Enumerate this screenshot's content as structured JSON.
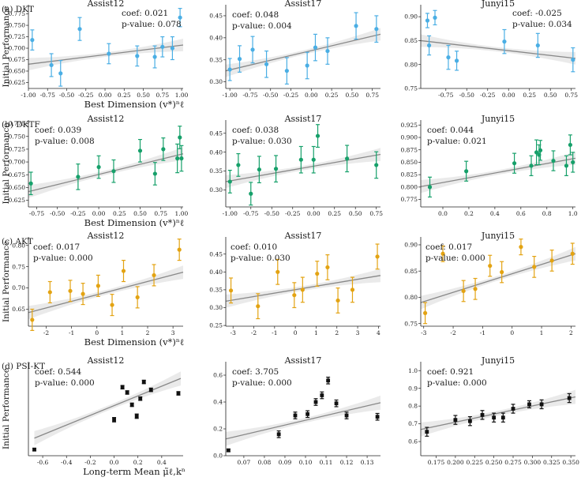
{
  "figure": {
    "ylabel": "Initial Performance",
    "rows": [
      {
        "label": "(a) DKT",
        "xlabel": "Best Dimension (v*)ⁿℓ"
      },
      {
        "label": "(b) DKTF",
        "xlabel": "Best Dimension (v*)ⁿℓ"
      },
      {
        "label": "(c) AKT",
        "xlabel": "Best Dimension (v*)ⁿℓ"
      },
      {
        "label": "(d) PSI-KT",
        "xlabel": "Long-term Mean μ̃ℓ,kⁿ"
      }
    ],
    "colors": {
      "DKT": "#4aaee4",
      "DKTF": "#16a06a",
      "AKT": "#e3a312",
      "PSI-KT": "#111111",
      "fit": "#888888",
      "band": "#e6e6e6"
    }
  },
  "chart_data": [
    {
      "type": "scatter",
      "row": 0,
      "col": 0,
      "model": "DKT",
      "title": "Assist12",
      "coef": "coef: 0.021",
      "pvalue": "p-value: 0.078",
      "xlim": [
        -1.0,
        1.02
      ],
      "ylim": [
        0.612,
        0.795
      ],
      "xticks": [
        "-1.00",
        "-0.75",
        "-0.50",
        "-0.25",
        "0.00",
        "0.25",
        "0.50",
        "0.75",
        "1.00"
      ],
      "yticks": [
        "0.625",
        "0.650",
        "0.675",
        "0.700",
        "0.725",
        "0.750",
        "0.775"
      ],
      "x": [
        -0.95,
        -0.7,
        -0.58,
        -0.33,
        0.05,
        0.42,
        0.65,
        0.75,
        0.88,
        0.98
      ],
      "y": [
        0.718,
        0.663,
        0.645,
        0.742,
        0.688,
        0.683,
        0.681,
        0.703,
        0.7,
        0.767
      ],
      "err": [
        0.022,
        0.025,
        0.028,
        0.025,
        0.022,
        0.022,
        0.024,
        0.022,
        0.025,
        0.02
      ],
      "fit": [
        [
          -1.0,
          0.665
        ],
        [
          1.02,
          0.707
        ]
      ]
    },
    {
      "type": "scatter",
      "row": 0,
      "col": 1,
      "model": "DKT",
      "title": "Assist17",
      "coef": "coef: 0.048",
      "pvalue": "p-value: 0.004",
      "xlim": [
        -1.05,
        0.85
      ],
      "ylim": [
        0.285,
        0.475
      ],
      "xticks": [
        "-1.00",
        "-0.75",
        "-0.50",
        "-0.25",
        "0.00",
        "0.25",
        "0.50",
        "0.75"
      ],
      "yticks": [
        "0.30",
        "0.35",
        "0.40",
        "0.45"
      ],
      "x": [
        -1.0,
        -0.88,
        -0.72,
        -0.55,
        -0.3,
        -0.05,
        0.05,
        0.2,
        0.55,
        0.8
      ],
      "y": [
        0.328,
        0.352,
        0.373,
        0.34,
        0.325,
        0.337,
        0.378,
        0.37,
        0.427,
        0.42
      ],
      "err": [
        0.025,
        0.03,
        0.03,
        0.03,
        0.03,
        0.03,
        0.03,
        0.03,
        0.03,
        0.03
      ],
      "fit": [
        [
          -1.05,
          0.325
        ],
        [
          0.85,
          0.408
        ]
      ]
    },
    {
      "type": "scatter",
      "row": 0,
      "col": 2,
      "model": "DKT",
      "title": "Junyi15",
      "coef": "coef: -0.025",
      "pvalue": "p-value: 0.034",
      "xlim": [
        -1.05,
        0.8
      ],
      "ylim": [
        0.75,
        0.925
      ],
      "xticks": [
        "-0.75",
        "-0.50",
        "-0.25",
        "0.00",
        "0.25",
        "0.50",
        "0.75"
      ],
      "yticks": [
        "0.75",
        "0.80",
        "0.85",
        "0.90"
      ],
      "x": [
        -0.97,
        -0.95,
        -0.88,
        -0.72,
        -0.62,
        -0.05,
        0.35,
        0.77
      ],
      "y": [
        0.892,
        0.84,
        0.898,
        0.815,
        0.808,
        0.848,
        0.84,
        0.81
      ],
      "err": [
        0.015,
        0.02,
        0.015,
        0.025,
        0.02,
        0.025,
        0.025,
        0.025
      ],
      "fit": [
        [
          -1.05,
          0.85
        ],
        [
          0.8,
          0.813
        ]
      ]
    },
    {
      "type": "scatter",
      "row": 1,
      "col": 0,
      "model": "DKTF",
      "title": "Assist12",
      "coef": "coef: 0.039",
      "pvalue": "p-value: 0.008",
      "xlim": [
        -0.85,
        1.02
      ],
      "ylim": [
        0.612,
        0.782
      ],
      "xticks": [
        "-0.75",
        "-0.50",
        "-0.25",
        "0.00",
        "0.25",
        "0.50",
        "0.75",
        "1.00"
      ],
      "yticks": [
        "0.625",
        "0.650",
        "0.675",
        "0.700",
        "0.725",
        "0.750",
        "0.775"
      ],
      "x": [
        -0.82,
        -0.25,
        0.0,
        0.18,
        0.5,
        0.68,
        0.78,
        0.95,
        0.98,
        1.0
      ],
      "y": [
        0.658,
        0.671,
        0.69,
        0.682,
        0.722,
        0.677,
        0.725,
        0.707,
        0.748,
        0.707
      ],
      "err": [
        0.022,
        0.025,
        0.022,
        0.022,
        0.022,
        0.022,
        0.022,
        0.028,
        0.022,
        0.025
      ],
      "fit": [
        [
          -0.85,
          0.642
        ],
        [
          1.02,
          0.716
        ]
      ]
    },
    {
      "type": "scatter",
      "row": 1,
      "col": 1,
      "model": "DKTF",
      "title": "Assist17",
      "coef": "coef: 0.038",
      "pvalue": "p-value: 0.030",
      "xlim": [
        -1.05,
        0.8
      ],
      "ylim": [
        0.255,
        0.485
      ],
      "xticks": [
        "-1.00",
        "-0.75",
        "-0.50",
        "-0.25",
        "0.00",
        "0.25",
        "0.50",
        "0.75"
      ],
      "yticks": [
        "0.30",
        "0.35",
        "0.40",
        "0.45"
      ],
      "x": [
        -1.0,
        -0.9,
        -0.75,
        -0.65,
        -0.45,
        -0.15,
        0.0,
        0.05,
        0.4,
        0.75
      ],
      "y": [
        0.322,
        0.366,
        0.29,
        0.354,
        0.356,
        0.38,
        0.38,
        0.443,
        0.383,
        0.366
      ],
      "err": [
        0.03,
        0.03,
        0.03,
        0.035,
        0.035,
        0.035,
        0.035,
        0.03,
        0.035,
        0.035
      ],
      "fit": [
        [
          -1.05,
          0.322
        ],
        [
          0.8,
          0.394
        ]
      ]
    },
    {
      "type": "scatter",
      "row": 1,
      "col": 2,
      "model": "DKTF",
      "title": "Junyi15",
      "coef": "coef: 0.044",
      "pvalue": "p-value: 0.021",
      "xlim": [
        -0.17,
        1.02
      ],
      "ylim": [
        0.76,
        0.935
      ],
      "xticks": [
        "0.0",
        "0.2",
        "0.4",
        "0.6",
        "0.8",
        "1.0"
      ],
      "yticks": [
        "0.775",
        "0.800",
        "0.825",
        "0.850",
        "0.875",
        "0.900",
        "0.925"
      ],
      "x": [
        -0.1,
        0.18,
        0.55,
        0.68,
        0.72,
        0.74,
        0.75,
        0.85,
        0.95,
        0.98,
        1.0
      ],
      "y": [
        0.8,
        0.832,
        0.848,
        0.843,
        0.87,
        0.865,
        0.874,
        0.853,
        0.843,
        0.885,
        0.85
      ],
      "err": [
        0.02,
        0.02,
        0.02,
        0.02,
        0.025,
        0.02,
        0.02,
        0.02,
        0.02,
        0.02,
        0.02
      ],
      "fit": [
        [
          -0.17,
          0.801
        ],
        [
          1.02,
          0.858
        ]
      ]
    },
    {
      "type": "scatter",
      "row": 2,
      "col": 0,
      "model": "AKT",
      "title": "Assist12",
      "coef": "coef: 0.017",
      "pvalue": "p-value: 0.000",
      "xlim": [
        -2.7,
        3.4
      ],
      "ylim": [
        0.61,
        0.82
      ],
      "xticks": [
        "-2",
        "-1",
        "0",
        "1",
        "2",
        "3"
      ],
      "yticks": [
        "0.60",
        "0.65",
        "0.70",
        "0.75",
        "0.80"
      ],
      "x": [
        -2.55,
        -1.85,
        -1.05,
        -0.55,
        0.05,
        0.6,
        1.05,
        1.6,
        2.25,
        3.25
      ],
      "y": [
        0.625,
        0.69,
        0.693,
        0.686,
        0.705,
        0.66,
        0.74,
        0.678,
        0.73,
        0.79
      ],
      "err": [
        0.025,
        0.025,
        0.025,
        0.025,
        0.025,
        0.025,
        0.025,
        0.025,
        0.025,
        0.025
      ],
      "fit": [
        [
          -2.7,
          0.642
        ],
        [
          3.4,
          0.737
        ]
      ]
    },
    {
      "type": "scatter",
      "row": 2,
      "col": 1,
      "model": "AKT",
      "title": "Assist17",
      "coef": "coef: 0.010",
      "pvalue": "p-value: 0.030",
      "xlim": [
        -3.35,
        4.1
      ],
      "ylim": [
        0.248,
        0.498
      ],
      "xticks": [
        "-3",
        "-2",
        "-1",
        "0",
        "1",
        "2",
        "3",
        "4"
      ],
      "yticks": [
        "0.25",
        "0.30",
        "0.35",
        "0.40",
        "0.45"
      ],
      "x": [
        -3.1,
        -1.8,
        -0.85,
        -0.05,
        0.35,
        1.05,
        1.55,
        2.05,
        2.75,
        3.95
      ],
      "y": [
        0.348,
        0.304,
        0.4,
        0.335,
        0.35,
        0.395,
        0.413,
        0.32,
        0.35,
        0.443
      ],
      "err": [
        0.035,
        0.035,
        0.035,
        0.035,
        0.035,
        0.035,
        0.035,
        0.035,
        0.035,
        0.035
      ],
      "fit": [
        [
          -3.35,
          0.318
        ],
        [
          4.1,
          0.39
        ]
      ]
    },
    {
      "type": "scatter",
      "row": 2,
      "col": 2,
      "model": "AKT",
      "title": "Junyi15",
      "coef": "coef: 0.017",
      "pvalue": "p-value: 0.000",
      "xlim": [
        -3.1,
        2.15
      ],
      "ylim": [
        0.745,
        0.915
      ],
      "xticks": [
        "-3",
        "-2",
        "-1",
        "0",
        "1",
        "2"
      ],
      "yticks": [
        "0.75",
        "0.80",
        "0.85",
        "0.90"
      ],
      "x": [
        -2.95,
        -2.35,
        -1.65,
        -1.25,
        -0.75,
        -0.35,
        0.3,
        0.75,
        1.35,
        2.05
      ],
      "y": [
        0.77,
        0.883,
        0.812,
        0.816,
        0.86,
        0.848,
        0.896,
        0.858,
        0.87,
        0.883
      ],
      "err": [
        0.02,
        0.015,
        0.02,
        0.02,
        0.02,
        0.02,
        0.015,
        0.02,
        0.02,
        0.02
      ],
      "fit": [
        [
          -3.1,
          0.79
        ],
        [
          2.15,
          0.883
        ]
      ]
    },
    {
      "type": "scatter",
      "row": 3,
      "col": 0,
      "model": "PSI-KT",
      "title": "Assist12",
      "coef": "coef: 0.544",
      "pvalue": "p-value: 0.000",
      "xlim": [
        -0.72,
        0.58
      ],
      "ylim": [
        0.05,
        1.12
      ],
      "xticks": [
        "-0.6",
        "-0.4",
        "-0.2",
        "0.0",
        "0.2",
        "0.4"
      ],
      "yticks": [],
      "x": [
        -0.67,
        0.0,
        0.07,
        0.11,
        0.15,
        0.19,
        0.22,
        0.25,
        0.31,
        0.54
      ],
      "y": [
        0.12,
        0.46,
        0.83,
        0.77,
        0.63,
        0.5,
        0.7,
        0.89,
        0.8,
        0.76
      ],
      "err": [
        0.015,
        0.025,
        0.02,
        0.02,
        0.02,
        0.025,
        0.02,
        0.02,
        0.02,
        0.02
      ],
      "fit": [
        [
          -0.67,
          0.25
        ],
        [
          0.56,
          0.93
        ]
      ]
    },
    {
      "type": "scatter",
      "row": 3,
      "col": 1,
      "model": "PSI-KT",
      "title": "Assist17",
      "coef": "coef: 3.705",
      "pvalue": "p-value: 0.000",
      "xlim": [
        0.0612,
        0.1365
      ],
      "ylim": [
        0.0,
        0.7
      ],
      "xticks": [
        "0.07",
        "0.08",
        "0.09",
        "0.10",
        "0.11",
        "0.12",
        "0.13"
      ],
      "yticks": [
        "0.0",
        "0.2",
        "0.4",
        "0.6"
      ],
      "x": [
        0.0625,
        0.087,
        0.095,
        0.101,
        0.105,
        0.108,
        0.111,
        0.115,
        0.12,
        0.135
      ],
      "y": [
        0.04,
        0.16,
        0.3,
        0.31,
        0.4,
        0.45,
        0.56,
        0.39,
        0.3,
        0.29
      ],
      "err": [
        0.01,
        0.025,
        0.025,
        0.025,
        0.025,
        0.025,
        0.025,
        0.025,
        0.025,
        0.025
      ],
      "fit": [
        [
          0.0612,
          0.125
        ],
        [
          0.1365,
          0.395
        ]
      ]
    },
    {
      "type": "scatter",
      "row": 3,
      "col": 2,
      "model": "PSI-KT",
      "title": "Junyi15",
      "coef": "coef: 0.921",
      "pvalue": "p-value: 0.000",
      "xlim": [
        0.155,
        0.356
      ],
      "ylim": [
        0.52,
        1.05
      ],
      "xticks": [
        "0.175",
        "0.200",
        "0.225",
        "0.250",
        "0.275",
        "0.300",
        "0.325",
        "0.350"
      ],
      "yticks": [
        "0.6",
        "0.7",
        "0.8",
        "0.9",
        "1.0"
      ],
      "x": [
        0.163,
        0.2,
        0.219,
        0.235,
        0.25,
        0.262,
        0.275,
        0.296,
        0.312,
        0.348
      ],
      "y": [
        0.655,
        0.722,
        0.715,
        0.75,
        0.735,
        0.735,
        0.785,
        0.81,
        0.81,
        0.845
      ],
      "err": [
        0.025,
        0.025,
        0.025,
        0.025,
        0.025,
        0.025,
        0.025,
        0.02,
        0.025,
        0.025
      ],
      "fit": [
        [
          0.155,
          0.668
        ],
        [
          0.356,
          0.852
        ]
      ]
    }
  ]
}
